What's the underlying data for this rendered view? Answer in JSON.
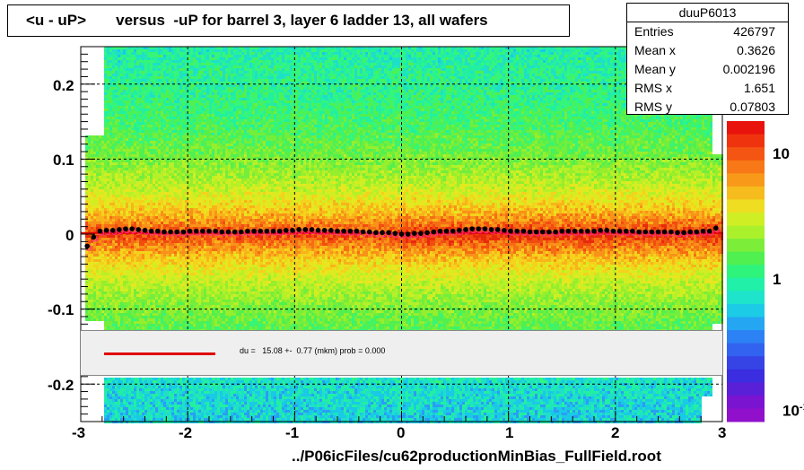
{
  "title": "<u - uP>       versus  -uP for barrel 3, layer 6 ladder 13, all wafers",
  "stats": {
    "name": "duuP6013",
    "rows": [
      {
        "label": "Entries",
        "value": "426797"
      },
      {
        "label": "Mean x",
        "value": "0.3626"
      },
      {
        "label": "Mean y",
        "value": "0.002196"
      },
      {
        "label": "RMS x",
        "value": "1.651"
      },
      {
        "label": "RMS y",
        "value": "0.07803"
      }
    ]
  },
  "fit_text": "du =   15.08 +-  0.77 (mkm) prob = 0.000",
  "x_axis_title": "../P06icFiles/cu62productionMinBias_FullField.root",
  "x_ticks": [
    "-3",
    "-2",
    "-1",
    "0",
    "1",
    "2",
    "3"
  ],
  "y_ticks": [
    "0.2",
    "0.1",
    "0",
    "-0.1",
    "-0.2"
  ],
  "z_ticks": [
    "10",
    "1",
    "10"
  ],
  "z_tick_superscript": "-1",
  "colors": {
    "fit_line": "#e00000",
    "profile_points": "#000000",
    "frame": "#000000"
  },
  "chart_data": {
    "type": "heatmap",
    "xlim": [
      -3,
      3
    ],
    "ylim": [
      -0.25,
      0.25
    ],
    "x_grid": [
      -2,
      -1,
      0,
      1,
      2
    ],
    "y_grid": [
      0.2,
      0.1,
      -0.1,
      -0.2
    ],
    "colorbar": "log",
    "profile": {
      "x": [
        -2.94,
        -2.88,
        -2.82,
        -2.76,
        -2.7,
        -2.64,
        -2.58,
        -2.52,
        -2.46,
        -2.4,
        -2.34,
        -2.28,
        -2.22,
        -2.16,
        -2.1,
        -2.04,
        -1.98,
        -1.92,
        -1.86,
        -1.8,
        -1.74,
        -1.68,
        -1.62,
        -1.56,
        -1.5,
        -1.44,
        -1.38,
        -1.32,
        -1.26,
        -1.2,
        -1.14,
        -1.08,
        -1.02,
        -0.96,
        -0.9,
        -0.84,
        -0.78,
        -0.72,
        -0.66,
        -0.6,
        -0.54,
        -0.48,
        -0.42,
        -0.36,
        -0.3,
        -0.24,
        -0.18,
        -0.12,
        -0.06,
        0.0,
        0.06,
        0.12,
        0.18,
        0.24,
        0.3,
        0.36,
        0.42,
        0.48,
        0.54,
        0.6,
        0.66,
        0.72,
        0.78,
        0.84,
        0.9,
        0.96,
        1.02,
        1.08,
        1.14,
        1.2,
        1.26,
        1.32,
        1.38,
        1.44,
        1.5,
        1.56,
        1.62,
        1.68,
        1.74,
        1.8,
        1.86,
        1.92,
        1.98,
        2.04,
        2.1,
        2.16,
        2.22,
        2.28,
        2.34,
        2.4,
        2.46,
        2.52,
        2.58,
        2.64,
        2.7,
        2.76,
        2.82,
        2.88,
        2.94
      ],
      "y": [
        -0.016,
        -0.004,
        0.004,
        0.005,
        0.005,
        0.006,
        0.007,
        0.007,
        0.006,
        0.005,
        0.004,
        0.004,
        0.003,
        0.003,
        0.003,
        0.003,
        0.004,
        0.004,
        0.004,
        0.004,
        0.004,
        0.003,
        0.003,
        0.003,
        0.003,
        0.004,
        0.004,
        0.004,
        0.004,
        0.004,
        0.004,
        0.005,
        0.005,
        0.006,
        0.006,
        0.006,
        0.005,
        0.005,
        0.005,
        0.004,
        0.004,
        0.004,
        0.004,
        0.003,
        0.003,
        0.002,
        0.002,
        0.002,
        0.001,
        0.0,
        0.0,
        0.001,
        0.001,
        0.002,
        0.003,
        0.004,
        0.004,
        0.004,
        0.005,
        0.006,
        0.007,
        0.007,
        0.007,
        0.006,
        0.006,
        0.005,
        0.004,
        0.004,
        0.004,
        0.003,
        0.003,
        0.003,
        0.003,
        0.003,
        0.004,
        0.004,
        0.004,
        0.004,
        0.004,
        0.004,
        0.005,
        0.005,
        0.004,
        0.004,
        0.004,
        0.004,
        0.003,
        0.003,
        0.003,
        0.003,
        0.003,
        0.003,
        0.002,
        0.002,
        0.003,
        0.003,
        0.004,
        0.004,
        0.008
      ]
    },
    "fit_line": {
      "y": 0.0015
    }
  }
}
